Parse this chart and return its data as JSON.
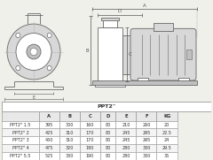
{
  "title": "PPT2\"",
  "columns": [
    "",
    "A",
    "B",
    "C",
    "D",
    "E",
    "F",
    "KG"
  ],
  "rows": [
    [
      "PPT2\" 1.5",
      "395",
      "300",
      "160",
      "80",
      "210",
      "260",
      "20"
    ],
    [
      "PPT2\" 2",
      "425",
      "310",
      "170",
      "80",
      "245",
      "295",
      "22.5"
    ],
    [
      "PPT2\" 3",
      "450",
      "310",
      "170",
      "80",
      "245",
      "295",
      "24"
    ],
    [
      "PPT2\" 4",
      "475",
      "320",
      "180",
      "80",
      "280",
      "330",
      "29.5"
    ],
    [
      "PPT2\" 5.5",
      "525",
      "330",
      "190",
      "80",
      "280",
      "330",
      "35"
    ]
  ],
  "bg_color": "#f0f0eb",
  "line_color": "#666666",
  "dim_color": "#555555",
  "table_border": "#999999",
  "white": "#ffffff",
  "light_gray": "#d8d8d8",
  "mid_gray": "#c0c0c0"
}
